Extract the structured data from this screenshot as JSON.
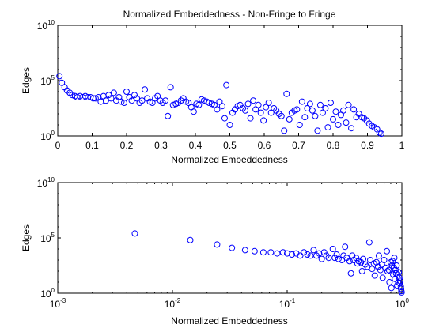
{
  "chart_data": [
    {
      "type": "scatter",
      "title": "Normalized Embeddedness - Non-Fringe to Fringe",
      "xlabel": "Normalized Embeddedness",
      "ylabel": "Edges",
      "xscale": "linear",
      "yscale": "log",
      "xlim": [
        0,
        1
      ],
      "ylim": [
        1,
        10000000000
      ],
      "x_ticks": [
        0,
        0.1,
        0.2,
        0.3,
        0.4,
        0.5,
        0.6,
        0.7,
        0.8,
        0.9,
        1
      ],
      "x_tick_labels": [
        "0",
        "0.1",
        "0.2",
        "0.3",
        "0.4",
        "0.5",
        "0.6",
        "0.7",
        "0.8",
        "0.9",
        "1"
      ],
      "y_ticks": [
        1,
        100000,
        10000000000
      ],
      "y_tick_bases": [
        "10",
        "10",
        "10"
      ],
      "y_tick_exponents": [
        "0",
        "5",
        "10"
      ],
      "marker_color": "#0000ff",
      "marker": "circle-open",
      "grid": false,
      "points": [
        [
          0.005,
          251189
        ],
        [
          0.012,
          63096
        ],
        [
          0.02,
          25119
        ],
        [
          0.027,
          12589
        ],
        [
          0.035,
          7943
        ],
        [
          0.042,
          5012
        ],
        [
          0.05,
          3981
        ],
        [
          0.057,
          3162
        ],
        [
          0.065,
          3981
        ],
        [
          0.072,
          3162
        ],
        [
          0.08,
          3981
        ],
        [
          0.088,
          3162
        ],
        [
          0.095,
          3162
        ],
        [
          0.103,
          2512
        ],
        [
          0.11,
          2512
        ],
        [
          0.118,
          3162
        ],
        [
          0.125,
          1259
        ],
        [
          0.133,
          3981
        ],
        [
          0.14,
          1585
        ],
        [
          0.148,
          5012
        ],
        [
          0.155,
          2512
        ],
        [
          0.163,
          7943
        ],
        [
          0.17,
          1585
        ],
        [
          0.178,
          3162
        ],
        [
          0.185,
          1259
        ],
        [
          0.193,
          1000
        ],
        [
          0.2,
          10000
        ],
        [
          0.208,
          3162
        ],
        [
          0.215,
          1585
        ],
        [
          0.223,
          5012
        ],
        [
          0.23,
          2512
        ],
        [
          0.238,
          1000
        ],
        [
          0.245,
          1585
        ],
        [
          0.253,
          15849
        ],
        [
          0.26,
          2512
        ],
        [
          0.268,
          1259
        ],
        [
          0.275,
          1000
        ],
        [
          0.283,
          2512
        ],
        [
          0.29,
          3981
        ],
        [
          0.298,
          1585
        ],
        [
          0.305,
          1000
        ],
        [
          0.313,
          1585
        ],
        [
          0.32,
          63
        ],
        [
          0.328,
          25119
        ],
        [
          0.335,
          631
        ],
        [
          0.343,
          794
        ],
        [
          0.35,
          1000
        ],
        [
          0.358,
          1585
        ],
        [
          0.365,
          2512
        ],
        [
          0.373,
          1259
        ],
        [
          0.38,
          1000
        ],
        [
          0.388,
          398
        ],
        [
          0.395,
          158
        ],
        [
          0.403,
          794
        ],
        [
          0.41,
          631
        ],
        [
          0.418,
          1995
        ],
        [
          0.425,
          1585
        ],
        [
          0.433,
          1259
        ],
        [
          0.44,
          1000
        ],
        [
          0.448,
          794
        ],
        [
          0.455,
          631
        ],
        [
          0.463,
          251
        ],
        [
          0.47,
          1259
        ],
        [
          0.478,
          501
        ],
        [
          0.485,
          40
        ],
        [
          0.49,
          39811
        ],
        [
          0.5,
          10
        ],
        [
          0.508,
          126
        ],
        [
          0.515,
          251
        ],
        [
          0.523,
          501
        ],
        [
          0.53,
          631
        ],
        [
          0.538,
          316
        ],
        [
          0.545,
          200
        ],
        [
          0.553,
          794
        ],
        [
          0.56,
          40
        ],
        [
          0.568,
          1585
        ],
        [
          0.575,
          251
        ],
        [
          0.583,
          631
        ],
        [
          0.59,
          126
        ],
        [
          0.598,
          25
        ],
        [
          0.605,
          398
        ],
        [
          0.613,
          1000
        ],
        [
          0.62,
          126
        ],
        [
          0.628,
          316
        ],
        [
          0.635,
          200
        ],
        [
          0.643,
          100
        ],
        [
          0.65,
          63
        ],
        [
          0.658,
          3
        ],
        [
          0.665,
          6310
        ],
        [
          0.673,
          32
        ],
        [
          0.68,
          126
        ],
        [
          0.688,
          200
        ],
        [
          0.695,
          251
        ],
        [
          0.703,
          10
        ],
        [
          0.71,
          1259
        ],
        [
          0.718,
          50
        ],
        [
          0.725,
          316
        ],
        [
          0.733,
          794
        ],
        [
          0.74,
          200
        ],
        [
          0.748,
          63
        ],
        [
          0.755,
          3
        ],
        [
          0.763,
          631
        ],
        [
          0.77,
          126
        ],
        [
          0.778,
          316
        ],
        [
          0.785,
          6
        ],
        [
          0.793,
          1000
        ],
        [
          0.8,
          32
        ],
        [
          0.808,
          158
        ],
        [
          0.815,
          10
        ],
        [
          0.823,
          79
        ],
        [
          0.83,
          200
        ],
        [
          0.838,
          16
        ],
        [
          0.845,
          631
        ],
        [
          0.853,
          5
        ],
        [
          0.86,
          251
        ],
        [
          0.868,
          50
        ],
        [
          0.875,
          100
        ],
        [
          0.883,
          50
        ],
        [
          0.89,
          40
        ],
        [
          0.898,
          25
        ],
        [
          0.905,
          13
        ],
        [
          0.913,
          8
        ],
        [
          0.92,
          6
        ],
        [
          0.928,
          4
        ],
        [
          0.935,
          2
        ],
        [
          0.94,
          1.6
        ]
      ]
    },
    {
      "type": "scatter",
      "title": "",
      "xlabel": "Normalized Embeddedness",
      "ylabel": "Edges",
      "xscale": "log",
      "yscale": "log",
      "xlim": [
        0.001,
        1
      ],
      "ylim": [
        1,
        10000000000
      ],
      "x_ticks": [
        0.001,
        0.01,
        0.1,
        1
      ],
      "x_tick_bases": [
        "10",
        "10",
        "10",
        "10"
      ],
      "x_tick_exponents": [
        "-3",
        "-2",
        "-1",
        "0"
      ],
      "y_ticks": [
        1,
        100000,
        10000000000
      ],
      "y_tick_bases": [
        "10",
        "10",
        "10"
      ],
      "y_tick_exponents": [
        "0",
        "5",
        "10"
      ],
      "marker_color": "#0000ff",
      "marker": "circle-open",
      "grid": false,
      "points": [
        [
          0.0047,
          251189
        ],
        [
          0.0143,
          63096
        ],
        [
          0.0245,
          25119
        ],
        [
          0.033,
          12589
        ],
        [
          0.043,
          7943
        ],
        [
          0.052,
          6310
        ],
        [
          0.062,
          5012
        ],
        [
          0.072,
          5012
        ],
        [
          0.082,
          3981
        ],
        [
          0.092,
          5012
        ],
        [
          0.1,
          3981
        ],
        [
          0.11,
          3162
        ],
        [
          0.12,
          3981
        ],
        [
          0.13,
          2512
        ],
        [
          0.14,
          5012
        ],
        [
          0.15,
          3162
        ],
        [
          0.16,
          2512
        ],
        [
          0.17,
          7943
        ],
        [
          0.18,
          2512
        ],
        [
          0.19,
          3981
        ],
        [
          0.2,
          1259
        ],
        [
          0.21,
          5012
        ],
        [
          0.22,
          2512
        ],
        [
          0.23,
          1585
        ],
        [
          0.25,
          10000
        ],
        [
          0.26,
          1585
        ],
        [
          0.27,
          3162
        ],
        [
          0.28,
          1259
        ],
        [
          0.3,
          1000
        ],
        [
          0.31,
          2512
        ],
        [
          0.32,
          15849
        ],
        [
          0.33,
          1585
        ],
        [
          0.35,
          794
        ],
        [
          0.36,
          63
        ],
        [
          0.37,
          2512
        ],
        [
          0.38,
          1000
        ],
        [
          0.4,
          1585
        ],
        [
          0.41,
          501
        ],
        [
          0.42,
          794
        ],
        [
          0.44,
          631
        ],
        [
          0.45,
          100
        ],
        [
          0.46,
          1259
        ],
        [
          0.48,
          398
        ],
        [
          0.5,
          251
        ],
        [
          0.52,
          39811
        ],
        [
          0.53,
          1000
        ],
        [
          0.55,
          158
        ],
        [
          0.57,
          501
        ],
        [
          0.58,
          40
        ],
        [
          0.6,
          631
        ],
        [
          0.62,
          251
        ],
        [
          0.63,
          2512
        ],
        [
          0.65,
          126
        ],
        [
          0.67,
          398
        ],
        [
          0.68,
          25
        ],
        [
          0.7,
          1000
        ],
        [
          0.72,
          200
        ],
        [
          0.74,
          6310
        ],
        [
          0.75,
          100
        ],
        [
          0.77,
          126
        ],
        [
          0.78,
          10
        ],
        [
          0.8,
          631
        ],
        [
          0.81,
          3
        ],
        [
          0.82,
          316
        ],
        [
          0.83,
          794
        ],
        [
          0.84,
          50
        ],
        [
          0.85,
          200
        ],
        [
          0.86,
          1585
        ],
        [
          0.87,
          20
        ],
        [
          0.88,
          126
        ],
        [
          0.89,
          63
        ],
        [
          0.9,
          316
        ],
        [
          0.91,
          5
        ],
        [
          0.92,
          50
        ],
        [
          0.93,
          10
        ],
        [
          0.94,
          79
        ],
        [
          0.95,
          25
        ],
        [
          0.96,
          8
        ],
        [
          0.97,
          13
        ],
        [
          0.98,
          4
        ],
        [
          0.985,
          2.5
        ],
        [
          0.99,
          1.6
        ],
        [
          0.995,
          1.2
        ]
      ]
    }
  ]
}
